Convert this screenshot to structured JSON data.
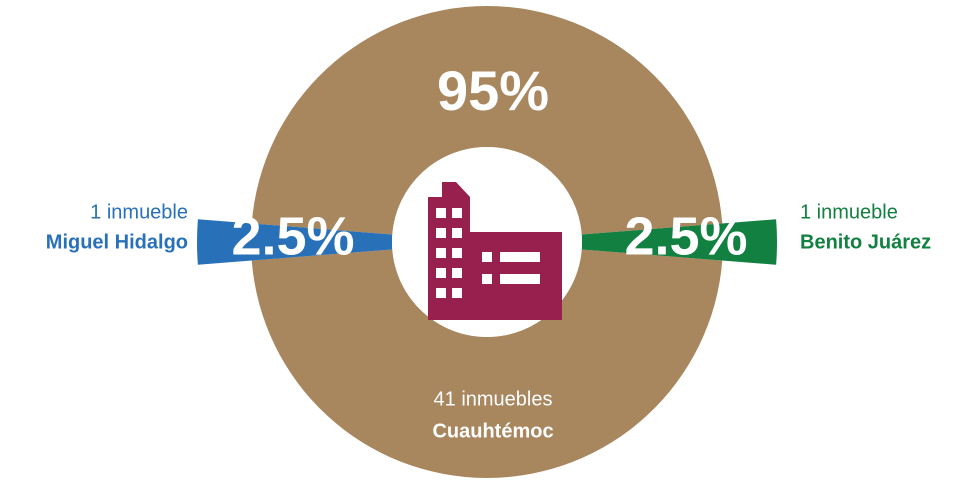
{
  "chart_data": {
    "type": "donut",
    "categories": [
      "Cuauhtémoc",
      "Miguel Hidalgo",
      "Benito Juárez"
    ],
    "descriptions": [
      "41 inmuebles",
      "1 inmueble",
      "1 inmueble"
    ],
    "values": [
      95,
      2.5,
      2.5
    ],
    "value_labels": [
      "95%",
      "2.5%",
      "2.5%"
    ],
    "colors": [
      "#a8865e",
      "#2871b9",
      "#128041"
    ]
  }
}
